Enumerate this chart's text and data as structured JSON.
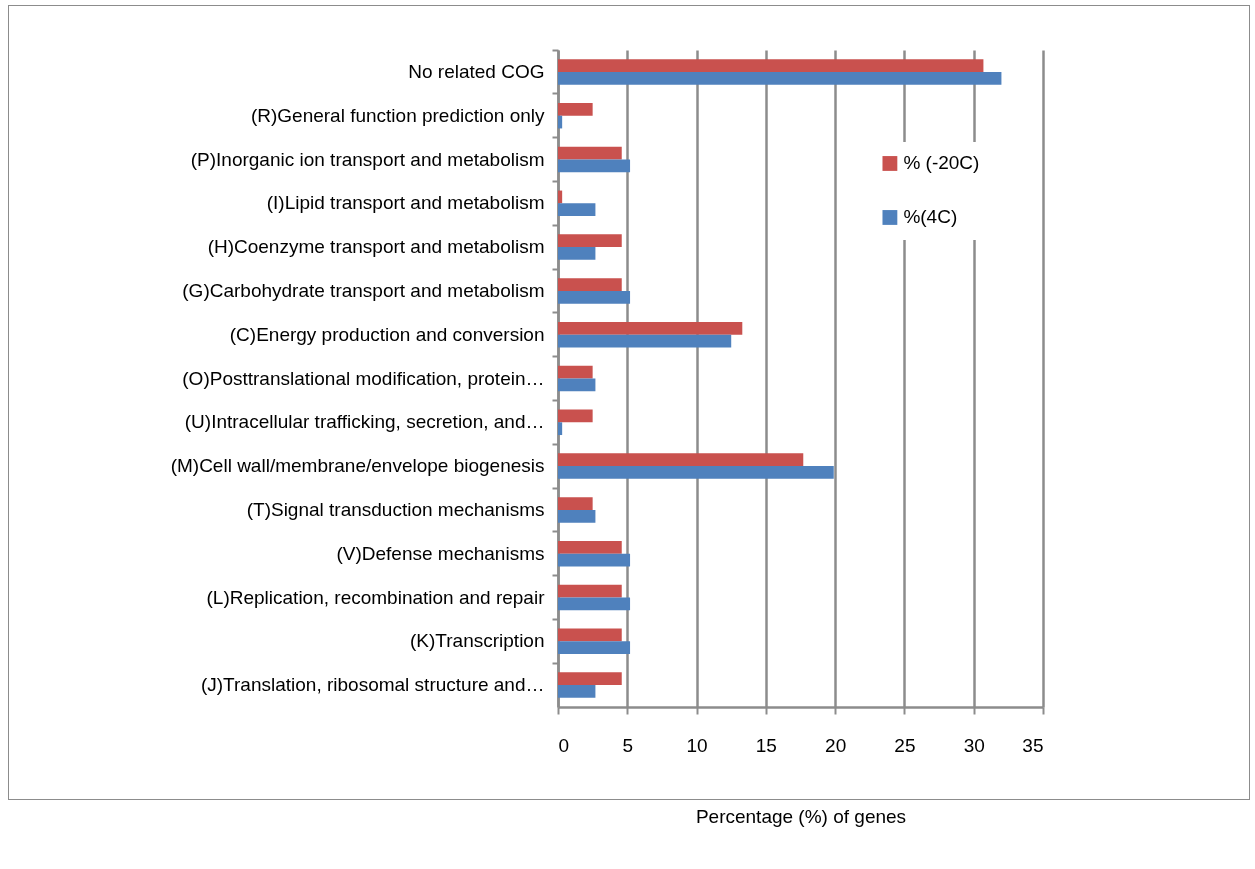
{
  "chart_data": {
    "type": "bar",
    "orientation": "horizontal",
    "categories": [
      "No related COG",
      "(R)General function prediction only",
      "(P)Inorganic ion transport and metabolism",
      "(I)Lipid transport and metabolism",
      "(H)Coenzyme transport and metabolism",
      "(G)Carbohydrate transport and metabolism",
      "(C)Energy production and conversion",
      "(O)Posttranslational modification, protein…",
      "(U)Intracellular trafficking, secretion, and…",
      "(M)Cell wall/membrane/envelope biogenesis",
      "(T)Signal transduction mechanisms",
      "(V)Defense mechanisms",
      "(L)Replication, recombination and repair",
      "(K)Transcription",
      "(J)Translation, ribosomal structure and…"
    ],
    "series": [
      {
        "name": "% (-20C)",
        "color": "#c9514e",
        "values": [
          30.7,
          2.5,
          4.6,
          0.3,
          4.6,
          4.6,
          13.3,
          2.5,
          2.5,
          17.7,
          2.5,
          4.6,
          4.6,
          4.6,
          4.6
        ]
      },
      {
        "name": "%(4C)",
        "color": "#4f81bd",
        "values": [
          32.0,
          0.3,
          5.2,
          2.7,
          2.7,
          5.2,
          12.5,
          2.7,
          0.3,
          19.9,
          2.7,
          5.2,
          5.2,
          5.2,
          2.7
        ]
      }
    ],
    "xlim": [
      0,
      35
    ],
    "xticks": [
      0,
      5,
      10,
      15,
      20,
      25,
      30,
      35
    ],
    "xlabel": "Percentage (%) of genes",
    "grid": "x",
    "legend": "top right"
  }
}
